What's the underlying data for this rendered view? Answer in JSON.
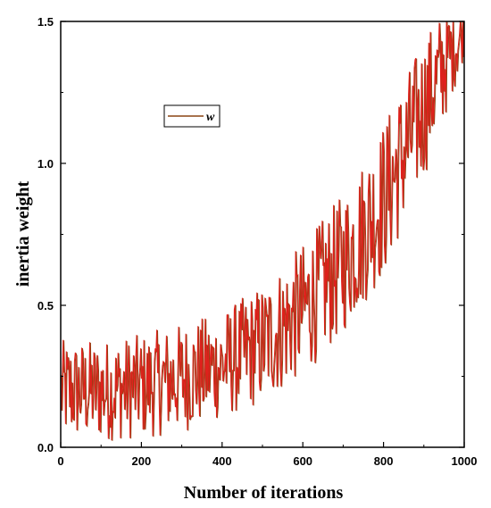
{
  "chart_data": {
    "type": "line",
    "title": "",
    "xlabel": "Number of iterations",
    "ylabel": "inertia weight",
    "xlim": [
      0,
      1000
    ],
    "ylim": [
      0,
      1.5
    ],
    "x_ticks": [
      "0",
      "200",
      "400",
      "600",
      "800",
      "1000"
    ],
    "y_ticks": [
      "0.0",
      "0.5",
      "1.0",
      "1.5"
    ],
    "grid": false,
    "legend_position": "top-left",
    "series": [
      {
        "name": "w",
        "color": "#e0201c",
        "shadow_color": "#8b4513",
        "envelope": {
          "x": [
            0,
            100,
            200,
            300,
            400,
            500,
            600,
            700,
            800,
            900,
            950,
            1000
          ],
          "lower": [
            0.02,
            0.02,
            0.03,
            0.05,
            0.1,
            0.15,
            0.25,
            0.4,
            0.6,
            0.95,
            1.15,
            1.38
          ],
          "upper": [
            0.38,
            0.38,
            0.4,
            0.44,
            0.48,
            0.58,
            0.72,
            0.9,
            1.15,
            1.45,
            1.55,
            1.55
          ]
        }
      }
    ]
  }
}
